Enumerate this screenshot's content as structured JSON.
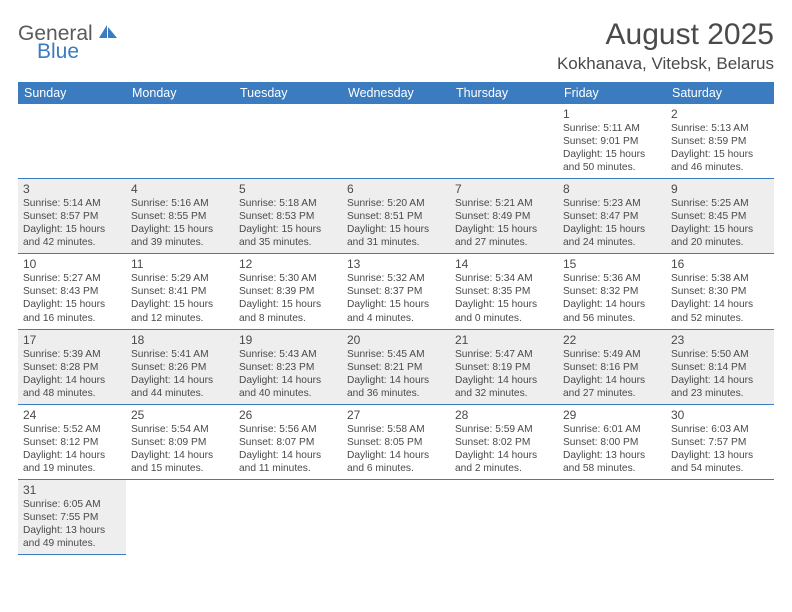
{
  "brand": {
    "part1": "General",
    "part2": "Blue"
  },
  "title": "August 2025",
  "location": "Kokhanava, Vitebsk, Belarus",
  "colors": {
    "header_bg": "#3b7bbf",
    "header_text": "#ffffff",
    "text": "#4a4a4a",
    "shaded_row": "#eeeeee",
    "border": "#3b7bbf",
    "logo_gray": "#5a5a5a",
    "logo_blue": "#3b7bbf"
  },
  "day_headers": [
    "Sunday",
    "Monday",
    "Tuesday",
    "Wednesday",
    "Thursday",
    "Friday",
    "Saturday"
  ],
  "weeks": [
    {
      "shaded": false,
      "days": [
        null,
        null,
        null,
        null,
        null,
        {
          "n": "1",
          "sr": "5:11 AM",
          "ss": "9:01 PM",
          "dl": "15 hours and 50 minutes."
        },
        {
          "n": "2",
          "sr": "5:13 AM",
          "ss": "8:59 PM",
          "dl": "15 hours and 46 minutes."
        }
      ]
    },
    {
      "shaded": true,
      "days": [
        {
          "n": "3",
          "sr": "5:14 AM",
          "ss": "8:57 PM",
          "dl": "15 hours and 42 minutes."
        },
        {
          "n": "4",
          "sr": "5:16 AM",
          "ss": "8:55 PM",
          "dl": "15 hours and 39 minutes."
        },
        {
          "n": "5",
          "sr": "5:18 AM",
          "ss": "8:53 PM",
          "dl": "15 hours and 35 minutes."
        },
        {
          "n": "6",
          "sr": "5:20 AM",
          "ss": "8:51 PM",
          "dl": "15 hours and 31 minutes."
        },
        {
          "n": "7",
          "sr": "5:21 AM",
          "ss": "8:49 PM",
          "dl": "15 hours and 27 minutes."
        },
        {
          "n": "8",
          "sr": "5:23 AM",
          "ss": "8:47 PM",
          "dl": "15 hours and 24 minutes."
        },
        {
          "n": "9",
          "sr": "5:25 AM",
          "ss": "8:45 PM",
          "dl": "15 hours and 20 minutes."
        }
      ]
    },
    {
      "shaded": false,
      "days": [
        {
          "n": "10",
          "sr": "5:27 AM",
          "ss": "8:43 PM",
          "dl": "15 hours and 16 minutes."
        },
        {
          "n": "11",
          "sr": "5:29 AM",
          "ss": "8:41 PM",
          "dl": "15 hours and 12 minutes."
        },
        {
          "n": "12",
          "sr": "5:30 AM",
          "ss": "8:39 PM",
          "dl": "15 hours and 8 minutes."
        },
        {
          "n": "13",
          "sr": "5:32 AM",
          "ss": "8:37 PM",
          "dl": "15 hours and 4 minutes."
        },
        {
          "n": "14",
          "sr": "5:34 AM",
          "ss": "8:35 PM",
          "dl": "15 hours and 0 minutes."
        },
        {
          "n": "15",
          "sr": "5:36 AM",
          "ss": "8:32 PM",
          "dl": "14 hours and 56 minutes."
        },
        {
          "n": "16",
          "sr": "5:38 AM",
          "ss": "8:30 PM",
          "dl": "14 hours and 52 minutes."
        }
      ]
    },
    {
      "shaded": true,
      "days": [
        {
          "n": "17",
          "sr": "5:39 AM",
          "ss": "8:28 PM",
          "dl": "14 hours and 48 minutes."
        },
        {
          "n": "18",
          "sr": "5:41 AM",
          "ss": "8:26 PM",
          "dl": "14 hours and 44 minutes."
        },
        {
          "n": "19",
          "sr": "5:43 AM",
          "ss": "8:23 PM",
          "dl": "14 hours and 40 minutes."
        },
        {
          "n": "20",
          "sr": "5:45 AM",
          "ss": "8:21 PM",
          "dl": "14 hours and 36 minutes."
        },
        {
          "n": "21",
          "sr": "5:47 AM",
          "ss": "8:19 PM",
          "dl": "14 hours and 32 minutes."
        },
        {
          "n": "22",
          "sr": "5:49 AM",
          "ss": "8:16 PM",
          "dl": "14 hours and 27 minutes."
        },
        {
          "n": "23",
          "sr": "5:50 AM",
          "ss": "8:14 PM",
          "dl": "14 hours and 23 minutes."
        }
      ]
    },
    {
      "shaded": false,
      "days": [
        {
          "n": "24",
          "sr": "5:52 AM",
          "ss": "8:12 PM",
          "dl": "14 hours and 19 minutes."
        },
        {
          "n": "25",
          "sr": "5:54 AM",
          "ss": "8:09 PM",
          "dl": "14 hours and 15 minutes."
        },
        {
          "n": "26",
          "sr": "5:56 AM",
          "ss": "8:07 PM",
          "dl": "14 hours and 11 minutes."
        },
        {
          "n": "27",
          "sr": "5:58 AM",
          "ss": "8:05 PM",
          "dl": "14 hours and 6 minutes."
        },
        {
          "n": "28",
          "sr": "5:59 AM",
          "ss": "8:02 PM",
          "dl": "14 hours and 2 minutes."
        },
        {
          "n": "29",
          "sr": "6:01 AM",
          "ss": "8:00 PM",
          "dl": "13 hours and 58 minutes."
        },
        {
          "n": "30",
          "sr": "6:03 AM",
          "ss": "7:57 PM",
          "dl": "13 hours and 54 minutes."
        }
      ]
    },
    {
      "shaded": true,
      "days": [
        {
          "n": "31",
          "sr": "6:05 AM",
          "ss": "7:55 PM",
          "dl": "13 hours and 49 minutes."
        },
        null,
        null,
        null,
        null,
        null,
        null
      ]
    }
  ],
  "labels": {
    "sunrise": "Sunrise:",
    "sunset": "Sunset:",
    "daylight": "Daylight:"
  }
}
